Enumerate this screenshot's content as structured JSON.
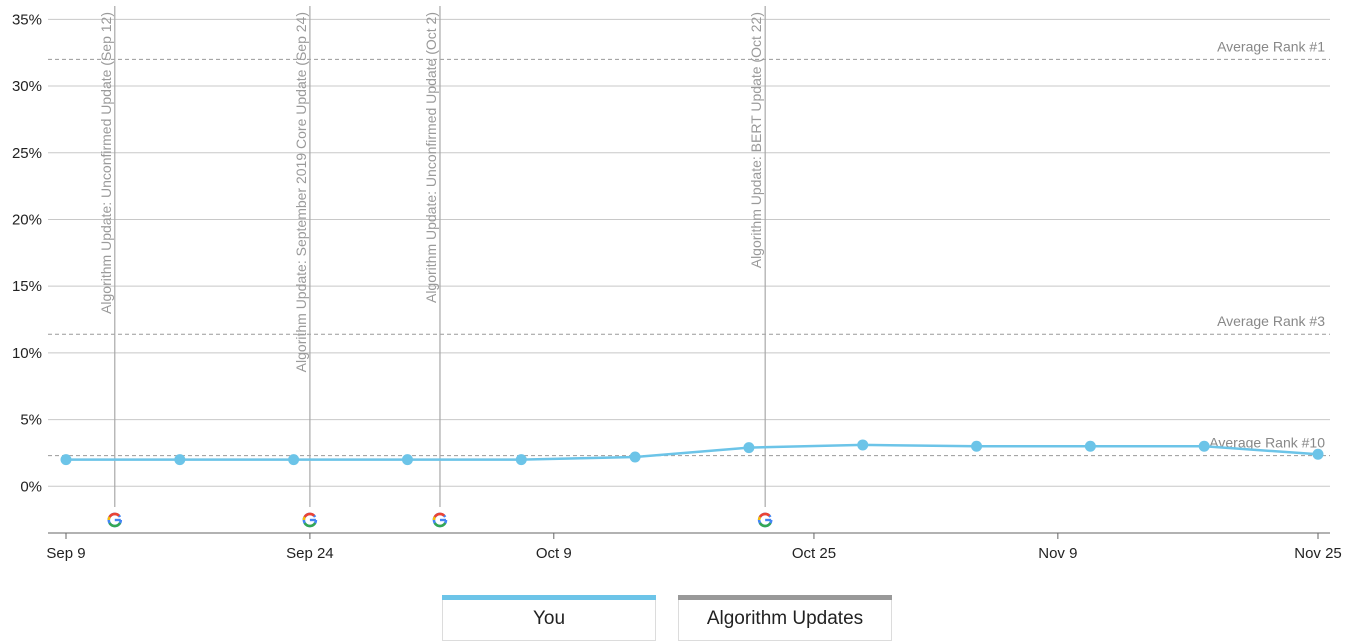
{
  "chart_data": {
    "type": "line",
    "x_ticks": [
      "Sep 9",
      "Sep 24",
      "Oct 9",
      "Oct 25",
      "Nov 9",
      "Nov 25"
    ],
    "y_ticks": [
      "35%",
      "30%",
      "25%",
      "20%",
      "15%",
      "10%",
      "5%",
      "0%"
    ],
    "ylim": [
      -3.5,
      36
    ],
    "series": [
      {
        "name": "You",
        "color": "#6cc4e8",
        "points": [
          {
            "x": "2019-09-09",
            "y": 2.0
          },
          {
            "x": "2019-09-16",
            "y": 2.0
          },
          {
            "x": "2019-09-23",
            "y": 2.0
          },
          {
            "x": "2019-09-30",
            "y": 2.0
          },
          {
            "x": "2019-10-07",
            "y": 2.0
          },
          {
            "x": "2019-10-14",
            "y": 2.2
          },
          {
            "x": "2019-10-21",
            "y": 2.9
          },
          {
            "x": "2019-10-28",
            "y": 3.1
          },
          {
            "x": "2019-11-04",
            "y": 3.0
          },
          {
            "x": "2019-11-11",
            "y": 3.0
          },
          {
            "x": "2019-11-18",
            "y": 3.0
          },
          {
            "x": "2019-11-25",
            "y": 2.4
          }
        ]
      }
    ],
    "reference_lines": [
      {
        "label": "Average Rank #1",
        "y": 32.0
      },
      {
        "label": "Average Rank #3",
        "y": 11.4
      },
      {
        "label": "Average Rank #10",
        "y": 2.3
      }
    ],
    "algorithm_updates": [
      {
        "label": "Algorithm Update: Unconfirmed Update (Sep 12)",
        "x": "2019-09-12",
        "icon": "google-g-icon"
      },
      {
        "label": "Algorithm Update: September 2019 Core Update (Sep 24)",
        "x": "2019-09-24",
        "icon": "google-g-icon"
      },
      {
        "label": "Algorithm Update: Unconfirmed Update (Oct 2)",
        "x": "2019-10-02",
        "icon": "google-g-icon"
      },
      {
        "label": "Algorithm Update: BERT Update (Oct 22)",
        "x": "2019-10-22",
        "icon": "google-g-icon"
      }
    ],
    "grid": true
  },
  "legend": {
    "items": [
      {
        "label": "You",
        "color": "#6cc4e8"
      },
      {
        "label": "Algorithm Updates",
        "color": "#999999"
      }
    ]
  }
}
